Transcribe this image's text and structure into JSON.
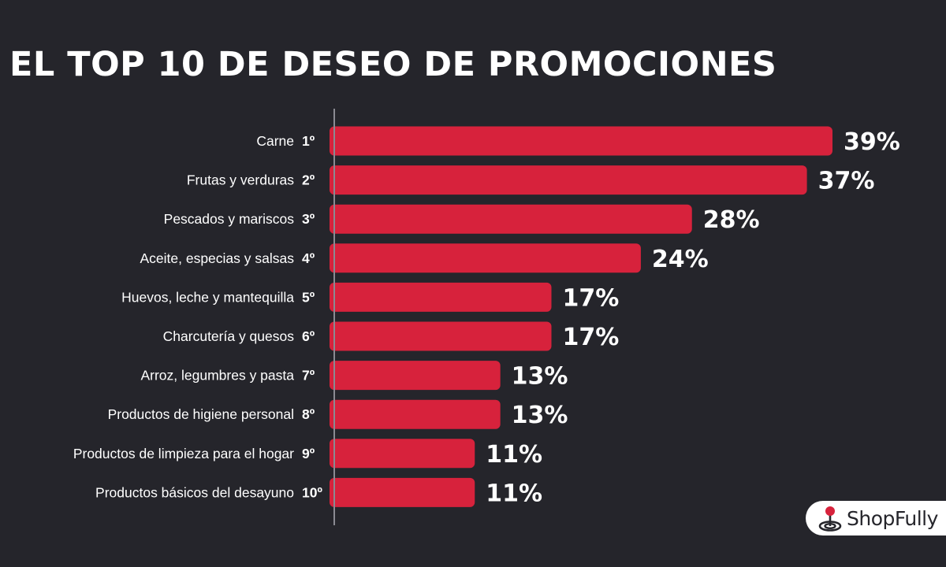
{
  "title": "EL TOP 10 DE DESEO DE PROMOCIONES",
  "brand": "ShopFully",
  "colors": {
    "background": "#25252b",
    "bar": "#d7223c",
    "text": "#ffffff",
    "axis": "#8a8a92"
  },
  "chart_data": {
    "type": "bar",
    "orientation": "horizontal",
    "title": "EL TOP 10 DE DESEO DE PROMOCIONES",
    "categories": [
      "Carne",
      "Frutas y verduras",
      "Pescados y mariscos",
      "Aceite, especias y salsas",
      "Huevos, leche y mantequilla",
      "Charcutería y quesos",
      "Arroz, legumbres y pasta",
      "Productos de higiene personal",
      "Productos de limpieza para el hogar",
      "Productos básicos del desayuno"
    ],
    "ranks": [
      "1º",
      "2º",
      "3º",
      "4º",
      "5º",
      "6º",
      "7º",
      "8º",
      "9º",
      "10º"
    ],
    "values": [
      39,
      37,
      28,
      24,
      17,
      17,
      13,
      13,
      11,
      11
    ],
    "value_labels": [
      "39%",
      "37%",
      "28%",
      "24%",
      "17%",
      "17%",
      "13%",
      "13%",
      "11%",
      "11%"
    ],
    "unit": "%",
    "xlim": [
      0,
      39
    ],
    "grid": false,
    "legend": "none"
  }
}
